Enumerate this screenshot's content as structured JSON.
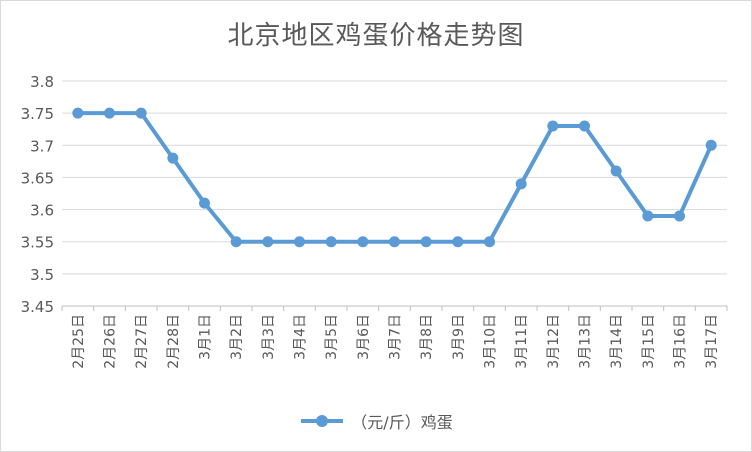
{
  "chart_data": {
    "type": "line",
    "title": "北京地区鸡蛋价格走势图",
    "xlabel": "",
    "ylabel": "",
    "categories": [
      "2月25日",
      "2月26日",
      "2月27日",
      "2月28日",
      "3月1日",
      "3月2日",
      "3月3日",
      "3月4日",
      "3月5日",
      "3月6日",
      "3月7日",
      "3月8日",
      "3月9日",
      "3月10日",
      "3月11日",
      "3月12日",
      "3月13日",
      "3月14日",
      "3月15日",
      "3月16日",
      "3月17日"
    ],
    "series": [
      {
        "name": "（元/斤）鸡蛋",
        "values": [
          3.75,
          3.75,
          3.75,
          3.68,
          3.61,
          3.55,
          3.55,
          3.55,
          3.55,
          3.55,
          3.55,
          3.55,
          3.55,
          3.55,
          3.64,
          3.73,
          3.73,
          3.66,
          3.59,
          3.59,
          3.7
        ]
      }
    ],
    "yticks": [
      "3.45",
      "3.5",
      "3.55",
      "3.6",
      "3.65",
      "3.7",
      "3.75",
      "3.8"
    ],
    "ylim": [
      3.45,
      3.8
    ],
    "grid": "horizontal",
    "legend": "bottom",
    "colors": {
      "series": "#5b9bd5",
      "grid": "#d9d9d9",
      "text": "#595959"
    }
  }
}
